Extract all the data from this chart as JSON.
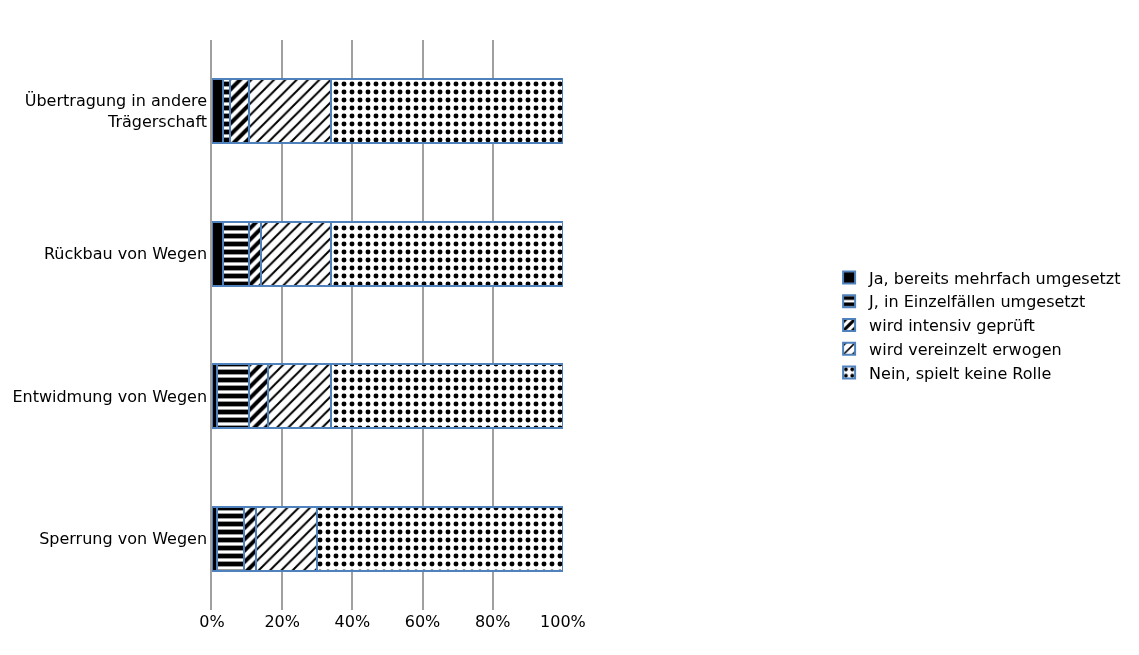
{
  "chart_data": {
    "type": "bar",
    "orientation": "horizontal",
    "stacked": true,
    "categories": [
      "Übertragung in andere Trägerschaft",
      "Rückbau von Wegen",
      "Entwidmung von Wegen",
      "Sperrung von Wegen"
    ],
    "series": [
      {
        "name": "Ja, bereits mehrfach umgesetzt",
        "color": "#000000",
        "values": [
          3,
          3,
          1.5,
          1.5
        ]
      },
      {
        "name": "J, in Einzelfällen umgesetzt",
        "color": "#4f81bd",
        "values": [
          2,
          7.5,
          9,
          7.5
        ]
      },
      {
        "name": "wird intensiv geprüft",
        "color": "#4f81bd",
        "values": [
          5.5,
          3.5,
          5.5,
          3.5
        ]
      },
      {
        "name": "wird vereinzelt erwogen",
        "color": "#4f81bd",
        "values": [
          23.5,
          20,
          18,
          17.5
        ]
      },
      {
        "name": "Nein, spielt keine Rolle",
        "color": "#4f81bd",
        "values": [
          66,
          66,
          66,
          70
        ]
      }
    ],
    "xlim": [
      0,
      100
    ],
    "xticks": [
      {
        "value": 0,
        "label": "0%"
      },
      {
        "value": 20,
        "label": "20%"
      },
      {
        "value": 40,
        "label": "40%"
      },
      {
        "value": 60,
        "label": "60%"
      },
      {
        "value": 80,
        "label": "80%"
      },
      {
        "value": 100,
        "label": "100%"
      }
    ],
    "grid": "x",
    "legend": "right"
  }
}
